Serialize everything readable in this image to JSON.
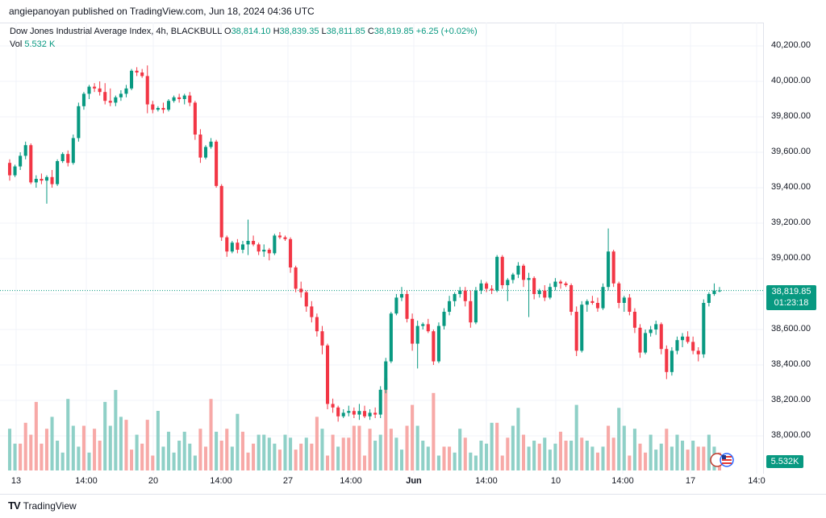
{
  "header": {
    "publisher_line": "angiepanoyan published on TradingView.com, Jun 18, 2024 04:36 UTC"
  },
  "legend": {
    "symbol": "Dow Jones Industrial Average Index, 4h, BLACKBULL",
    "o_label": "O",
    "o_value": "38,814.10",
    "h_label": "H",
    "h_value": "38,839.35",
    "l_label": "L",
    "l_value": "38,811.85",
    "c_label": "C",
    "c_value": "38,819.85",
    "change": "+6.25 (+0.02%)",
    "vol_label": "Vol",
    "vol_value": "5.532 K"
  },
  "price_axis": {
    "ticks": [
      "40,200.00",
      "40,000.00",
      "39,800.00",
      "39,600.00",
      "39,400.00",
      "39,200.00",
      "39,000.00",
      "38,600.00",
      "38,400.00",
      "38,200.00",
      "38,000.00"
    ],
    "last_price": "38,819.85",
    "countdown": "01:23:18",
    "volume_tag": "5.532K"
  },
  "time_axis": {
    "ticks": [
      "13",
      "14:00",
      "20",
      "14:00",
      "27",
      "14:00",
      "Jun",
      "14:00",
      "10",
      "14:00",
      "17",
      "14:0"
    ]
  },
  "footer": {
    "brand": "TradingView"
  },
  "colors": {
    "up": "#089981",
    "down": "#f23645",
    "vol_up": "#8fd0c7",
    "vol_down": "#f7a9a7"
  },
  "chart_data": {
    "type": "candlestick",
    "title": "Dow Jones Industrial Average Index, 4h, BLACKBULL",
    "ylim": [
      37800,
      40300
    ],
    "last": 38819.85,
    "candles": [
      [
        39540,
        39560,
        39440,
        39470
      ],
      [
        39470,
        39530,
        39460,
        39520
      ],
      [
        39520,
        39600,
        39500,
        39580
      ],
      [
        39580,
        39660,
        39560,
        39640
      ],
      [
        39640,
        39650,
        39420,
        39430
      ],
      [
        39430,
        39470,
        39400,
        39450
      ],
      [
        39450,
        39480,
        39420,
        39440
      ],
      [
        39440,
        39470,
        39310,
        39460
      ],
      [
        39460,
        39500,
        39400,
        39420
      ],
      [
        39420,
        39560,
        39410,
        39550
      ],
      [
        39550,
        39600,
        39540,
        39590
      ],
      [
        39590,
        39610,
        39520,
        39540
      ],
      [
        39540,
        39700,
        39530,
        39680
      ],
      [
        39680,
        39880,
        39660,
        39860
      ],
      [
        39860,
        39940,
        39840,
        39930
      ],
      [
        39930,
        39980,
        39900,
        39970
      ],
      [
        39970,
        39990,
        39940,
        39960
      ],
      [
        39960,
        40000,
        39920,
        39940
      ],
      [
        39940,
        39990,
        39870,
        39890
      ],
      [
        39890,
        39960,
        39860,
        39880
      ],
      [
        39880,
        39920,
        39860,
        39910
      ],
      [
        39910,
        39950,
        39890,
        39930
      ],
      [
        39930,
        39980,
        39910,
        39960
      ],
      [
        39960,
        40070,
        39950,
        40060
      ],
      [
        40060,
        40080,
        40030,
        40050
      ],
      [
        40050,
        40070,
        40020,
        40030
      ],
      [
        40030,
        40090,
        39820,
        39870
      ],
      [
        39870,
        39890,
        39820,
        39840
      ],
      [
        39840,
        39860,
        39830,
        39850
      ],
      [
        39850,
        39880,
        39820,
        39840
      ],
      [
        39840,
        39900,
        39830,
        39890
      ],
      [
        39890,
        39920,
        39880,
        39910
      ],
      [
        39910,
        39930,
        39880,
        39900
      ],
      [
        39900,
        39930,
        39870,
        39920
      ],
      [
        39920,
        39940,
        39860,
        39880
      ],
      [
        39880,
        39890,
        39670,
        39700
      ],
      [
        39700,
        39730,
        39540,
        39570
      ],
      [
        39570,
        39640,
        39560,
        39630
      ],
      [
        39630,
        39680,
        39620,
        39660
      ],
      [
        39660,
        39670,
        39400,
        39410
      ],
      [
        39410,
        39420,
        39100,
        39120
      ],
      [
        39120,
        39130,
        39010,
        39040
      ],
      [
        39040,
        39100,
        39030,
        39090
      ],
      [
        39090,
        39110,
        39030,
        39050
      ],
      [
        39050,
        39100,
        39030,
        39080
      ],
      [
        39080,
        39220,
        39020,
        39100
      ],
      [
        39100,
        39130,
        39070,
        39080
      ],
      [
        39080,
        39090,
        39020,
        39040
      ],
      [
        39040,
        39080,
        39010,
        39050
      ],
      [
        39050,
        39060,
        38990,
        39030
      ],
      [
        39030,
        39140,
        39020,
        39130
      ],
      [
        39130,
        39150,
        39110,
        39120
      ],
      [
        39120,
        39130,
        39100,
        39110
      ],
      [
        39110,
        39120,
        38920,
        38950
      ],
      [
        38950,
        38960,
        38810,
        38830
      ],
      [
        38830,
        38870,
        38780,
        38810
      ],
      [
        38810,
        38820,
        38700,
        38730
      ],
      [
        38730,
        38760,
        38640,
        38670
      ],
      [
        38670,
        38690,
        38560,
        38590
      ],
      [
        38590,
        38620,
        38460,
        38510
      ],
      [
        38510,
        38520,
        38150,
        38180
      ],
      [
        38180,
        38210,
        38130,
        38160
      ],
      [
        38160,
        38170,
        38080,
        38110
      ],
      [
        38110,
        38150,
        38100,
        38130
      ],
      [
        38130,
        38170,
        38110,
        38140
      ],
      [
        38140,
        38160,
        38100,
        38120
      ],
      [
        38120,
        38180,
        38090,
        38140
      ],
      [
        38140,
        38170,
        38100,
        38110
      ],
      [
        38110,
        38150,
        38090,
        38130
      ],
      [
        38130,
        38160,
        38100,
        38120
      ],
      [
        38120,
        38280,
        38100,
        38260
      ],
      [
        38260,
        38440,
        38240,
        38420
      ],
      [
        38420,
        38700,
        38410,
        38690
      ],
      [
        38690,
        38800,
        38680,
        38780
      ],
      [
        38780,
        38840,
        38760,
        38800
      ],
      [
        38800,
        38820,
        38640,
        38660
      ],
      [
        38660,
        38690,
        38480,
        38520
      ],
      [
        38520,
        38650,
        38380,
        38620
      ],
      [
        38620,
        38640,
        38600,
        38630
      ],
      [
        38630,
        38660,
        38580,
        38590
      ],
      [
        38590,
        38600,
        38400,
        38420
      ],
      [
        38420,
        38640,
        38410,
        38620
      ],
      [
        38620,
        38720,
        38600,
        38700
      ],
      [
        38700,
        38790,
        38680,
        38760
      ],
      [
        38760,
        38810,
        38730,
        38800
      ],
      [
        38800,
        38840,
        38780,
        38820
      ],
      [
        38820,
        38840,
        38730,
        38760
      ],
      [
        38760,
        38820,
        38610,
        38640
      ],
      [
        38640,
        38840,
        38630,
        38820
      ],
      [
        38820,
        38880,
        38800,
        38860
      ],
      [
        38860,
        38870,
        38810,
        38830
      ],
      [
        38830,
        38850,
        38800,
        38820
      ],
      [
        38820,
        39020,
        38810,
        39010
      ],
      [
        39010,
        39020,
        38830,
        38850
      ],
      [
        38850,
        38890,
        38760,
        38880
      ],
      [
        38880,
        38920,
        38860,
        38910
      ],
      [
        38910,
        38980,
        38890,
        38960
      ],
      [
        38960,
        38970,
        38840,
        38880
      ],
      [
        38880,
        38920,
        38670,
        38890
      ],
      [
        38890,
        38900,
        38770,
        38800
      ],
      [
        38800,
        38830,
        38780,
        38820
      ],
      [
        38820,
        38850,
        38760,
        38780
      ],
      [
        38780,
        38860,
        38770,
        38840
      ],
      [
        38840,
        38890,
        38820,
        38870
      ],
      [
        38870,
        38880,
        38830,
        38860
      ],
      [
        38860,
        38870,
        38840,
        38850
      ],
      [
        38850,
        38860,
        38680,
        38700
      ],
      [
        38700,
        38730,
        38450,
        38480
      ],
      [
        38480,
        38760,
        38470,
        38740
      ],
      [
        38740,
        38770,
        38700,
        38760
      ],
      [
        38760,
        38790,
        38740,
        38750
      ],
      [
        38750,
        38780,
        38700,
        38720
      ],
      [
        38720,
        38860,
        38710,
        38840
      ],
      [
        38840,
        39170,
        38820,
        39040
      ],
      [
        39040,
        39050,
        38840,
        38860
      ],
      [
        38860,
        38870,
        38720,
        38750
      ],
      [
        38750,
        38790,
        38700,
        38780
      ],
      [
        38780,
        38800,
        38680,
        38700
      ],
      [
        38700,
        38720,
        38580,
        38610
      ],
      [
        38610,
        38630,
        38440,
        38470
      ],
      [
        38470,
        38600,
        38460,
        38580
      ],
      [
        38580,
        38620,
        38560,
        38600
      ],
      [
        38600,
        38650,
        38570,
        38630
      ],
      [
        38630,
        38640,
        38460,
        38490
      ],
      [
        38490,
        38510,
        38320,
        38360
      ],
      [
        38360,
        38500,
        38340,
        38480
      ],
      [
        38480,
        38560,
        38460,
        38540
      ],
      [
        38540,
        38580,
        38500,
        38560
      ],
      [
        38560,
        38590,
        38520,
        38530
      ],
      [
        38530,
        38560,
        38460,
        38480
      ],
      [
        38480,
        38500,
        38420,
        38460
      ],
      [
        38460,
        38770,
        38440,
        38750
      ],
      [
        38750,
        38810,
        38730,
        38800
      ],
      [
        38800,
        38860,
        38790,
        38820
      ],
      [
        38820,
        38840,
        38810,
        38820
      ]
    ],
    "volume": [
      [
        0.14,
        1
      ],
      [
        0.09,
        1
      ],
      [
        0.09,
        0
      ],
      [
        0.16,
        0
      ],
      [
        0.12,
        0
      ],
      [
        0.23,
        0
      ],
      [
        0.09,
        0
      ],
      [
        0.14,
        0
      ],
      [
        0.18,
        1
      ],
      [
        0.1,
        1
      ],
      [
        0.06,
        1
      ],
      [
        0.24,
        1
      ],
      [
        0.15,
        1
      ],
      [
        0.08,
        1
      ],
      [
        0.15,
        0
      ],
      [
        0.06,
        1
      ],
      [
        0.14,
        0
      ],
      [
        0.1,
        0
      ],
      [
        0.23,
        1
      ],
      [
        0.15,
        1
      ],
      [
        0.27,
        1
      ],
      [
        0.18,
        1
      ],
      [
        0.17,
        0
      ],
      [
        0.07,
        0
      ],
      [
        0.12,
        1
      ],
      [
        0.09,
        0
      ],
      [
        0.17,
        0
      ],
      [
        0.05,
        0
      ],
      [
        0.2,
        1
      ],
      [
        0.08,
        1
      ],
      [
        0.13,
        1
      ],
      [
        0.06,
        1
      ],
      [
        0.1,
        1
      ],
      [
        0.13,
        1
      ],
      [
        0.09,
        1
      ],
      [
        0.05,
        1
      ],
      [
        0.14,
        0
      ],
      [
        0.08,
        0
      ],
      [
        0.24,
        0
      ],
      [
        0.13,
        1
      ],
      [
        0.1,
        0
      ],
      [
        0.14,
        0
      ],
      [
        0.08,
        1
      ],
      [
        0.19,
        1
      ],
      [
        0.13,
        0
      ],
      [
        0.06,
        0
      ],
      [
        0.09,
        0
      ],
      [
        0.12,
        1
      ],
      [
        0.12,
        1
      ],
      [
        0.11,
        1
      ],
      [
        0.09,
        1
      ],
      [
        0.07,
        0
      ],
      [
        0.12,
        1
      ],
      [
        0.11,
        1
      ],
      [
        0.07,
        0
      ],
      [
        0.09,
        0
      ],
      [
        0.11,
        1
      ],
      [
        0.09,
        0
      ],
      [
        0.18,
        0
      ],
      [
        0.14,
        1
      ],
      [
        0.05,
        0
      ],
      [
        0.12,
        0
      ],
      [
        0.08,
        1
      ],
      [
        0.11,
        0
      ],
      [
        0.11,
        0
      ],
      [
        0.15,
        0
      ],
      [
        0.15,
        0
      ],
      [
        0.05,
        0
      ],
      [
        0.14,
        0
      ],
      [
        0.1,
        1
      ],
      [
        0.12,
        1
      ],
      [
        0.31,
        0
      ],
      [
        0.14,
        0
      ],
      [
        0.11,
        1
      ],
      [
        0.07,
        1
      ],
      [
        0.15,
        0
      ],
      [
        0.22,
        0
      ],
      [
        0.15,
        1
      ],
      [
        0.1,
        1
      ],
      [
        0.08,
        1
      ],
      [
        0.26,
        0
      ],
      [
        0.05,
        1
      ],
      [
        0.08,
        0
      ],
      [
        0.08,
        0
      ],
      [
        0.06,
        1
      ],
      [
        0.14,
        1
      ],
      [
        0.11,
        0
      ],
      [
        0.06,
        1
      ],
      [
        0.05,
        1
      ],
      [
        0.1,
        1
      ],
      [
        0.09,
        1
      ],
      [
        0.16,
        1
      ],
      [
        0.16,
        0
      ],
      [
        0.05,
        0
      ],
      [
        0.11,
        0
      ],
      [
        0.15,
        1
      ],
      [
        0.21,
        1
      ],
      [
        0.12,
        0
      ],
      [
        0.08,
        1
      ],
      [
        0.1,
        1
      ],
      [
        0.09,
        0
      ],
      [
        0.11,
        1
      ],
      [
        0.07,
        1
      ],
      [
        0.09,
        1
      ],
      [
        0.13,
        0
      ],
      [
        0.1,
        0
      ],
      [
        0.1,
        1
      ],
      [
        0.22,
        1
      ],
      [
        0.11,
        0
      ],
      [
        0.1,
        1
      ],
      [
        0.08,
        1
      ],
      [
        0.06,
        0
      ],
      [
        0.08,
        1
      ],
      [
        0.15,
        0
      ],
      [
        0.11,
        0
      ],
      [
        0.21,
        1
      ],
      [
        0.15,
        1
      ],
      [
        0.05,
        0
      ],
      [
        0.14,
        1
      ],
      [
        0.09,
        0
      ],
      [
        0.06,
        0
      ],
      [
        0.12,
        1
      ],
      [
        0.07,
        1
      ],
      [
        0.09,
        1
      ],
      [
        0.14,
        0
      ],
      [
        0.08,
        1
      ],
      [
        0.12,
        1
      ],
      [
        0.1,
        1
      ],
      [
        0.07,
        0
      ],
      [
        0.1,
        1
      ],
      [
        0.08,
        0
      ],
      [
        0.08,
        0
      ],
      [
        0.12,
        1
      ],
      [
        0.08,
        1
      ],
      [
        0.06,
        0
      ],
      [
        0.08,
        1
      ]
    ]
  }
}
